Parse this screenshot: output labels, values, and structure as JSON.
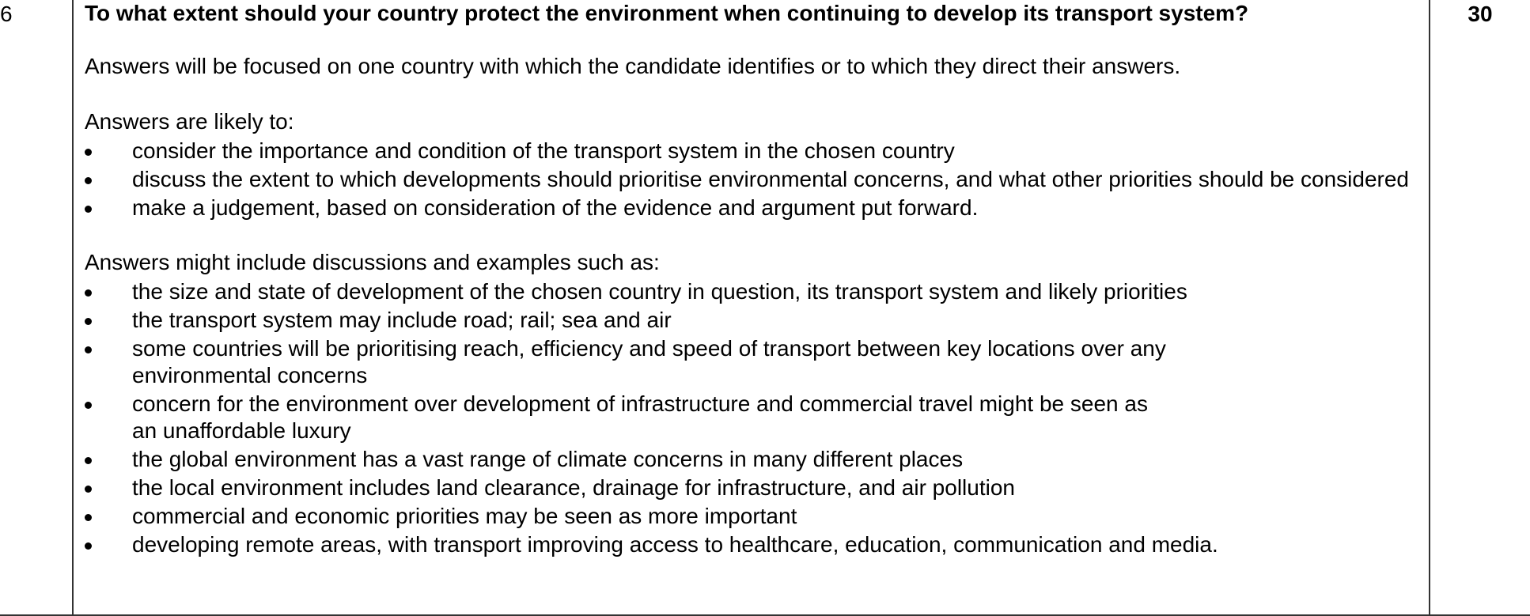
{
  "question": {
    "number": "6",
    "title": "To what extent should your country protect the environment when continuing to develop its transport system?",
    "marks": "30"
  },
  "intro": "Answers will be focused on one country with which the candidate identifies or to which they direct their answers.",
  "likely": {
    "heading": "Answers are likely to:",
    "items": [
      "consider the importance and condition of the transport system in the chosen country",
      "discuss the extent to which developments should prioritise environmental concerns, and what other priorities should be considered",
      "make a judgement, based on consideration of the evidence and argument put forward."
    ]
  },
  "examples": {
    "heading": "Answers might include discussions and examples such as:",
    "items": [
      "the size and state of development of the chosen country in question, its transport system and likely priorities",
      "the transport system may include road; rail; sea and air",
      "some countries will be prioritising reach, efficiency and speed of transport between key locations over any environmental concerns",
      "concern for the environment over development of infrastructure and commercial travel might be seen as an unaffordable luxury",
      "the global environment has a vast range of climate concerns in many different places",
      "the local environment includes land clearance, drainage for infrastructure, and air pollution",
      "commercial and economic priorities may be seen as more important",
      "developing remote areas, with transport improving access to healthcare, education, communication and media."
    ]
  }
}
